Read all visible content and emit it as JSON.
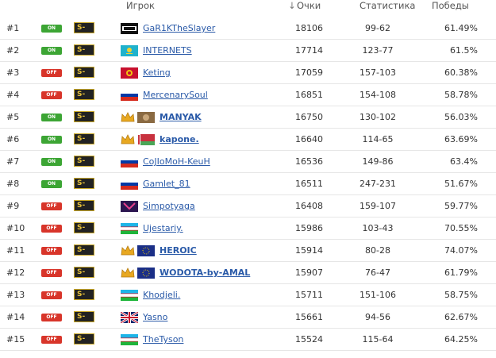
{
  "header": {
    "player": "Игрок",
    "points": "Очки",
    "stats": "Статистика",
    "wins": "Победы"
  },
  "rows": [
    [
      "#1",
      "ON",
      "S-",
      "GaR1KTheSlayer",
      18106,
      "99-62",
      "61.49%"
    ],
    [
      "#2",
      "ON",
      "S-",
      "INTERNETS",
      17714,
      "123-77",
      "61.5%"
    ],
    [
      "#3",
      "OFF",
      "S-",
      "Keting",
      17059,
      "157-103",
      "60.38%"
    ],
    [
      "#4",
      "OFF",
      "S-",
      "MercenarySoul",
      16851,
      "154-108",
      "58.78%"
    ],
    [
      "#5",
      "ON",
      "S-",
      "MANYAK",
      16750,
      "130-102",
      "56.03%"
    ],
    [
      "#6",
      "ON",
      "S-",
      "kapone.",
      16640,
      "114-65",
      "63.69%"
    ],
    [
      "#7",
      "ON",
      "S-",
      "CoJIoMoH-KeuH",
      16536,
      "149-86",
      "63.4%"
    ],
    [
      "#8",
      "ON",
      "S-",
      "Gamlet_81",
      16511,
      "247-231",
      "51.67%"
    ],
    [
      "#9",
      "OFF",
      "S-",
      "Simpotyaga",
      16408,
      "159-107",
      "59.77%"
    ],
    [
      "#10",
      "OFF",
      "S-",
      "Ujestariy.",
      15986,
      "103-43",
      "70.55%"
    ],
    [
      "#11",
      "OFF",
      "S-",
      "HEROIC",
      15914,
      "80-28",
      "74.07%"
    ],
    [
      "#12",
      "OFF",
      "S-",
      "WODOTA-by-AMAL",
      15907,
      "76-47",
      "61.79%"
    ],
    [
      "#13",
      "OFF",
      "S-",
      "Khodjeli.",
      15711,
      "151-106",
      "58.75%"
    ],
    [
      "#14",
      "OFF",
      "S-",
      "Yasno",
      15661,
      "94-56",
      "62.67%"
    ],
    [
      "#15",
      "OFF",
      "S-",
      "TheTyson",
      15524,
      "115-64",
      "64.25%"
    ]
  ]
}
